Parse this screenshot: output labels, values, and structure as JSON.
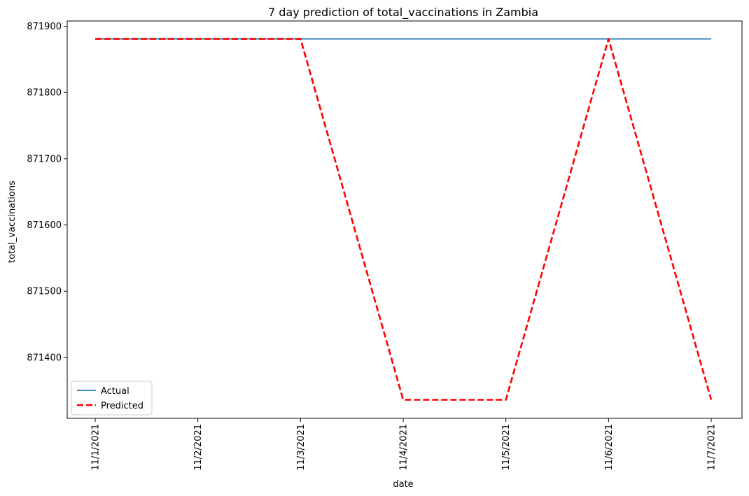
{
  "chart_data": {
    "type": "line",
    "title": "7 day prediction of total_vaccinations in Zambia",
    "xlabel": "date",
    "ylabel": "total_vaccinations",
    "categories": [
      "11/1/2021",
      "11/2/2021",
      "11/3/2021",
      "11/4/2021",
      "11/5/2021",
      "11/6/2021",
      "11/7/2021"
    ],
    "series": [
      {
        "name": "Actual",
        "values": [
          871881,
          871881,
          871881,
          871881,
          871881,
          871881,
          871881
        ],
        "color": "#1f77b4",
        "style": "solid"
      },
      {
        "name": "Predicted",
        "values": [
          871881,
          871881,
          871881,
          871336,
          871336,
          871881,
          871336
        ],
        "color": "#ff0000",
        "style": "dashed"
      }
    ],
    "ylim": [
      871308,
      871908
    ],
    "yticks": [
      871400,
      871500,
      871600,
      871700,
      871800,
      871900
    ],
    "grid": false,
    "legend_position": "lower-left"
  }
}
